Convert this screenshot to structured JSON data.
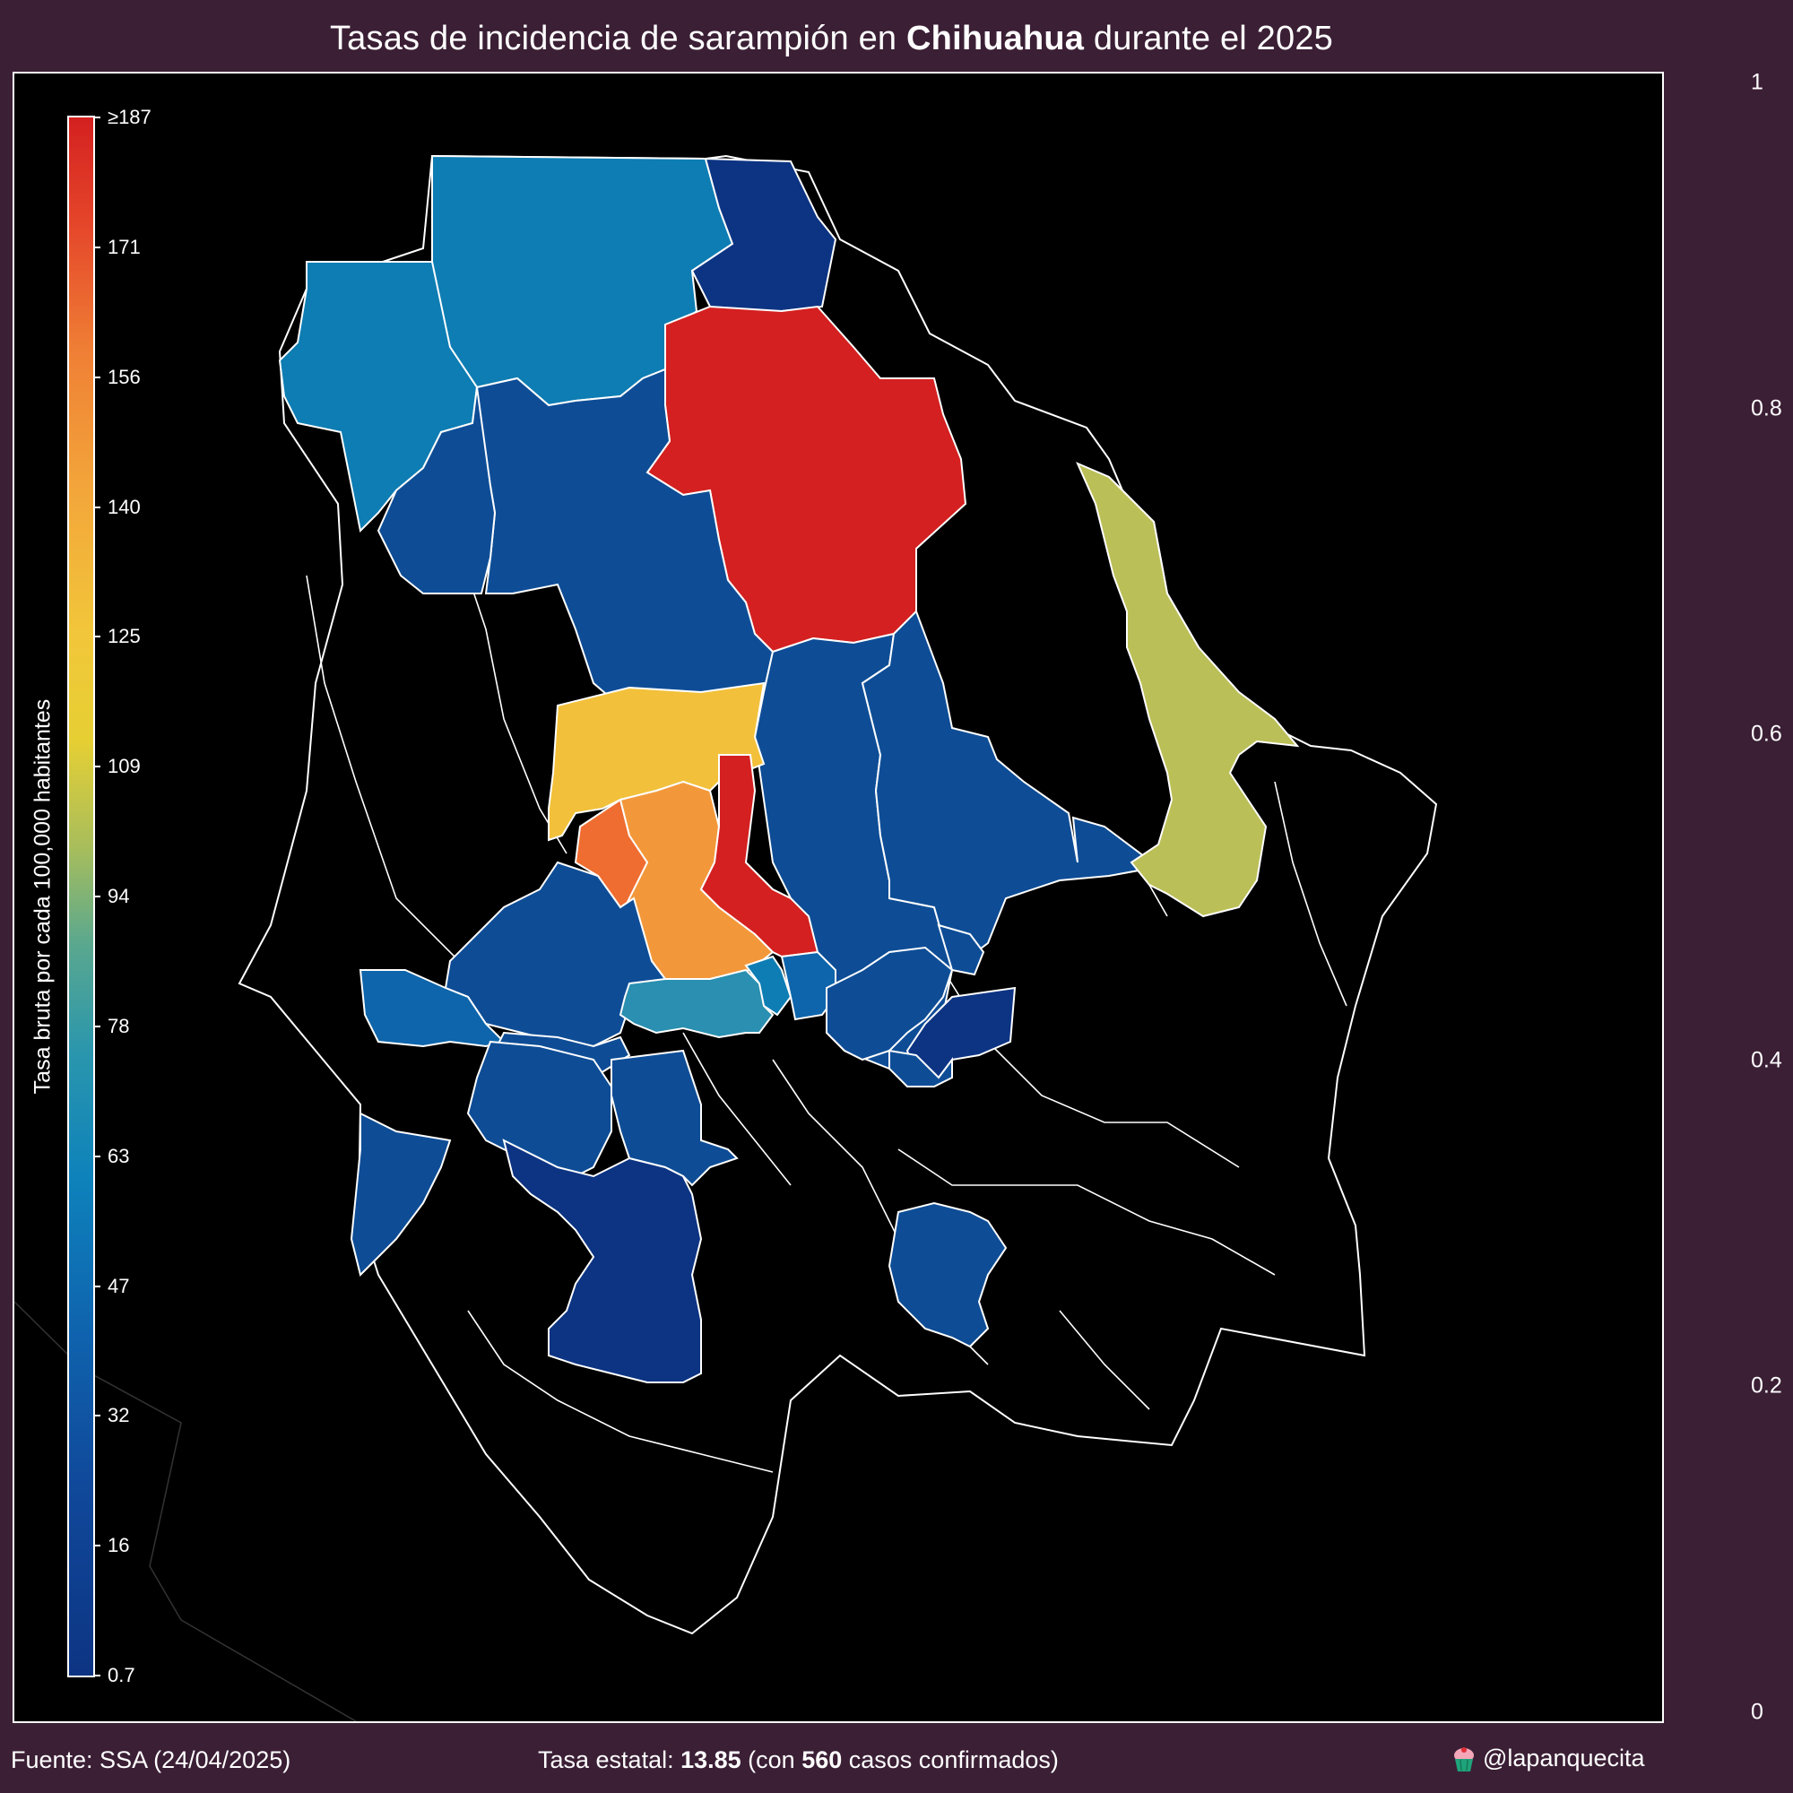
{
  "title": {
    "prefix": "Tasas de incidencia de sarampión en ",
    "state": "Chihuahua",
    "suffix": " durante el 2025"
  },
  "colorbar": {
    "label": "Tasa bruta por cada 100,000 habitantes",
    "ticks": [
      "≥187",
      "171",
      "156",
      "140",
      "125",
      "109",
      "94",
      "78",
      "63",
      "47",
      "32",
      "16",
      "0.7"
    ],
    "range": [
      0.7,
      187
    ],
    "colors": [
      "#0d3483",
      "#0f63ae",
      "#2a96ad",
      "#a6bd5c",
      "#e6cf33",
      "#f3a63a",
      "#ef7f35",
      "#d42020"
    ]
  },
  "right_axis": {
    "ticks": [
      "1",
      "0.8",
      "0.6",
      "0.4",
      "0.2",
      "0"
    ]
  },
  "footer": {
    "source": "Fuente: SSA (24/04/2025)",
    "rate_prefix": "Tasa estatal: ",
    "rate_value": "13.85",
    "rate_mid": " (con ",
    "cases": "560",
    "rate_suffix": " casos confirmados)",
    "handle": "@lapanquecita"
  },
  "map": {
    "background": "#000000",
    "border_color": "#ffffff",
    "no_data_fill": "#000000"
  }
}
